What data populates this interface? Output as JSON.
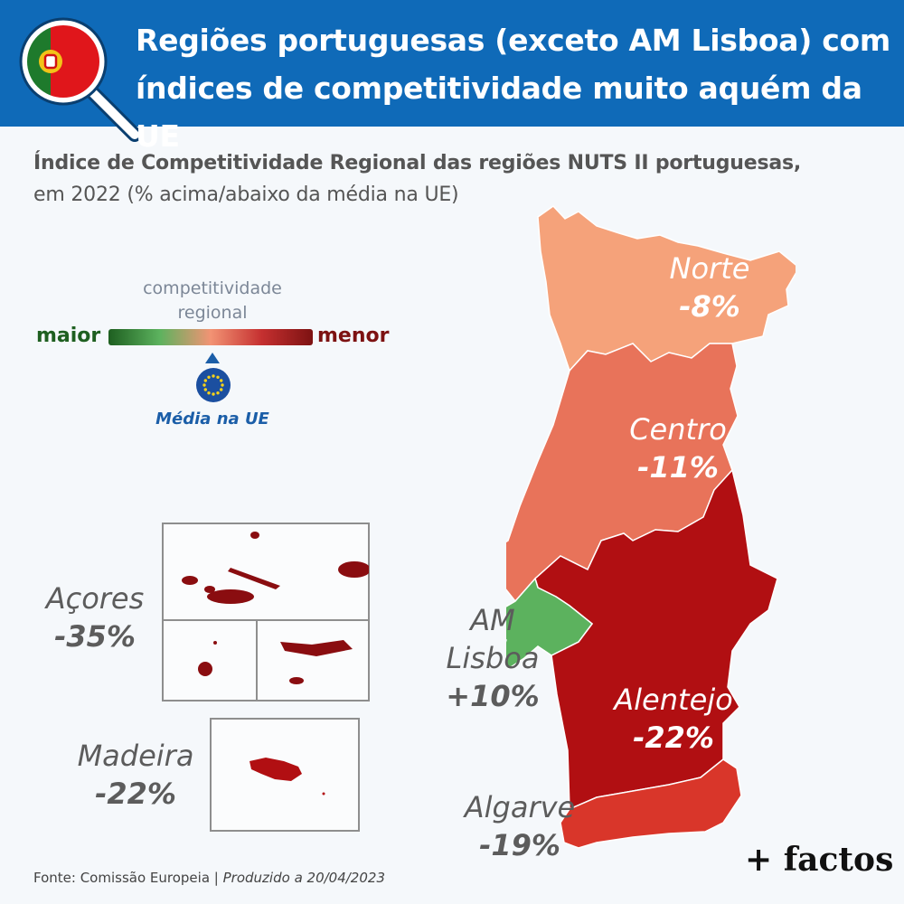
{
  "header": {
    "title_line1": "Regiões portuguesas (exceto AM Lisboa) com",
    "title_line2": "índices de competitividade muito aquém da UE"
  },
  "subtitle": {
    "bold": "Índice de Competitividade Regional das regiões NUTS II portuguesas,",
    "normal": "em 2022 (% acima/abaixo da média na UE)"
  },
  "legend": {
    "title_line1": "competitividade",
    "title_line2": "regional",
    "left_label": "maior",
    "right_label": "menor",
    "eu_marker_label": "Média na UE",
    "gradient_colors": [
      "#1e5f20",
      "#5cb25e",
      "#f29374",
      "#c53030",
      "#7d1212"
    ]
  },
  "regions": [
    {
      "name": "Norte",
      "value": "-8%",
      "color": "#f5a27a"
    },
    {
      "name": "Centro",
      "value": "-11%",
      "color": "#e8735a"
    },
    {
      "name_line1": "AM",
      "name_line2": "Lisboa",
      "value": "+10%",
      "color": "#5cb25e"
    },
    {
      "name": "Alentejo",
      "value": "-22%",
      "color": "#b10f12"
    },
    {
      "name": "Algarve",
      "value": "-19%",
      "color": "#d9362a"
    },
    {
      "name": "Açores",
      "value": "-35%",
      "color": "#8a0d10"
    },
    {
      "name": "Madeira",
      "value": "-22%",
      "color": "#b10f12"
    }
  ],
  "footer": {
    "source": "Fonte: Comissão Europeia",
    "separator": "|",
    "produced": "Produzido a 20/04/2023",
    "brand": "+ factos"
  },
  "icons": {
    "header_icon": "magnifier-portugal-flag-icon",
    "eu_icon": "eu-flag-circle-icon",
    "eu_pointer": "triangle-up-icon"
  }
}
